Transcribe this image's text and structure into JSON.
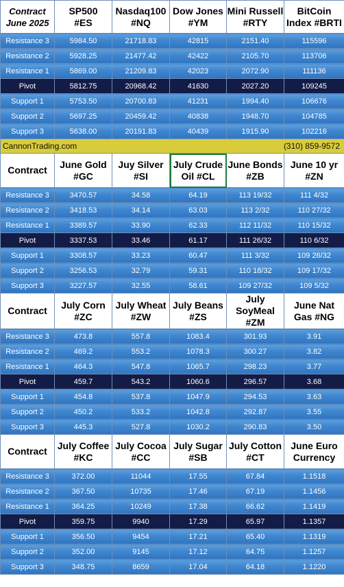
{
  "brand": {
    "site": "CannonTrading.com",
    "phone": "(310) 859-9572"
  },
  "row_labels": [
    "Resistance 3",
    "Resistance 2",
    "Resistance 1",
    "Pivot",
    "Support 1",
    "Support 2",
    "Support 3"
  ],
  "blocks": [
    {
      "corner": "Contract\nJune 2025",
      "headers": [
        "SP500\n#ES",
        "Nasdaq100\n#NQ",
        "Dow Jones\n#YM",
        "Mini Russell\n#RTY",
        "BitCoin\nIndex #BRTI"
      ],
      "rows": [
        [
          "5984.50",
          "21718.83",
          "42815",
          "2151.40",
          "115596"
        ],
        [
          "5928.25",
          "21477.42",
          "42422",
          "2105.70",
          "113706"
        ],
        [
          "5869.00",
          "21209.83",
          "42023",
          "2072.90",
          "111136"
        ],
        [
          "5812.75",
          "20968.42",
          "41630",
          "2027.20",
          "109245"
        ],
        [
          "5753.50",
          "20700.83",
          "41231",
          "1994.40",
          "106676"
        ],
        [
          "5697.25",
          "20459.42",
          "40838",
          "1948.70",
          "104785"
        ],
        [
          "5638.00",
          "20191.83",
          "40439",
          "1915.90",
          "102216"
        ]
      ]
    },
    {
      "corner": "Contract",
      "headers": [
        "June Gold\n#GC",
        "Juy Silver\n#SI",
        "July Crude\nOil #CL",
        "June Bonds\n#ZB",
        "June 10 yr\n#ZN"
      ],
      "rows": [
        [
          "3470.57",
          "34.58",
          "64.19",
          "113 19/32",
          "111  4/32"
        ],
        [
          "3418.53",
          "34.14",
          "63.03",
          "113  2/32",
          "110 27/32"
        ],
        [
          "3389.57",
          "33.90",
          "62.33",
          "112 11/32",
          "110 15/32"
        ],
        [
          "3337.53",
          "33.46",
          "61.17",
          "111 26/32",
          "110  6/32"
        ],
        [
          "3308.57",
          "33.23",
          "60.47",
          "111  3/32",
          "109 26/32"
        ],
        [
          "3256.53",
          "32.79",
          "59.31",
          "110 18/32",
          "109 17/32"
        ],
        [
          "3227.57",
          "32.55",
          "58.61",
          "109 27/32",
          "109  5/32"
        ]
      ]
    },
    {
      "corner": "Contract",
      "headers": [
        "July Corn\n#ZC",
        "July  Wheat\n#ZW",
        "July Beans\n#ZS",
        "July\nSoyMeal\n#ZM",
        "June Nat\nGas #NG"
      ],
      "rows": [
        [
          "473.8",
          "557.8",
          "1083.4",
          "301.93",
          "3.91"
        ],
        [
          "469.2",
          "553.2",
          "1078.3",
          "300.27",
          "3.82"
        ],
        [
          "464.3",
          "547.8",
          "1065.7",
          "298.23",
          "3.77"
        ],
        [
          "459.7",
          "543.2",
          "1060.6",
          "296.57",
          "3.68"
        ],
        [
          "454.8",
          "537.8",
          "1047.9",
          "294.53",
          "3.63"
        ],
        [
          "450.2",
          "533.2",
          "1042.8",
          "292.87",
          "3.55"
        ],
        [
          "445.3",
          "527.8",
          "1030.2",
          "290.83",
          "3.50"
        ]
      ]
    },
    {
      "corner": "Contract",
      "headers": [
        "July Coffee\n#KC",
        "July Cocoa\n#CC",
        "July Sugar\n#SB",
        "July Cotton\n#CT",
        "June Euro\nCurrency"
      ],
      "rows": [
        [
          "372.00",
          "11044",
          "17.55",
          "67.84",
          "1.1518"
        ],
        [
          "367.50",
          "10735",
          "17.46",
          "67.19",
          "1.1456"
        ],
        [
          "364.25",
          "10249",
          "17.38",
          "66.62",
          "1.1419"
        ],
        [
          "359.75",
          "9940",
          "17.29",
          "65.97",
          "1.1357"
        ],
        [
          "356.50",
          "9454",
          "17.21",
          "65.40",
          "1.1319"
        ],
        [
          "352.00",
          "9145",
          "17.12",
          "64.75",
          "1.1257"
        ],
        [
          "348.75",
          "8659",
          "17.04",
          "64.18",
          "1.1220"
        ]
      ]
    }
  ]
}
